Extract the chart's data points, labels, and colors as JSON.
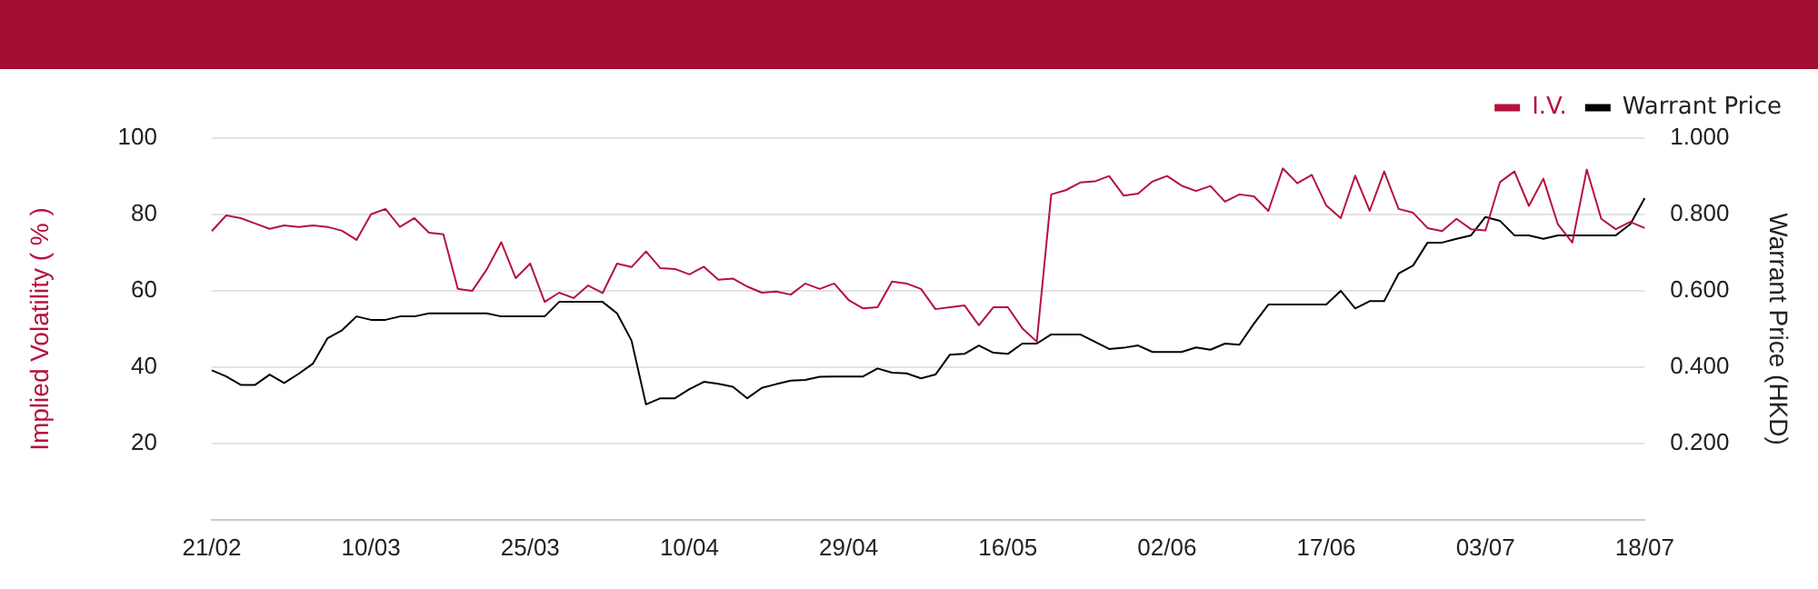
{
  "chart_data": {
    "type": "line",
    "ylabel": "Implied Volatility ( % )",
    "y2label": "Warrant Price (HKD)",
    "categories": [
      "21/02",
      null,
      null,
      null,
      null,
      null,
      null,
      null,
      null,
      null,
      null,
      "10/03",
      null,
      null,
      null,
      null,
      null,
      null,
      null,
      null,
      null,
      null,
      "25/03",
      null,
      null,
      null,
      null,
      null,
      null,
      null,
      null,
      null,
      null,
      "10/04",
      null,
      null,
      null,
      null,
      null,
      null,
      null,
      null,
      null,
      null,
      "29/04",
      null,
      null,
      null,
      null,
      null,
      null,
      null,
      null,
      null,
      null,
      "16/05",
      null,
      null,
      null,
      null,
      null,
      null,
      null,
      null,
      null,
      null,
      "02/06",
      null,
      null,
      null,
      null,
      null,
      null,
      null,
      null,
      null,
      null,
      "17/06",
      null,
      null,
      null,
      null,
      null,
      null,
      null,
      null,
      null,
      null,
      "03/07",
      null,
      null,
      null,
      null,
      null,
      null,
      null,
      null,
      null,
      null,
      "18/07"
    ],
    "series": [
      {
        "name": "I.V.",
        "color": "#b5123e",
        "values": [
          75.6,
          79.7,
          79,
          77.6,
          76.2,
          77.1,
          76.7,
          77.1,
          76.7,
          75.7,
          73.3,
          80,
          81.4,
          76.7,
          79,
          75.2,
          74.8,
          60.5,
          60,
          65.6,
          72.7,
          63.3,
          67.1,
          57.1,
          59.5,
          58.1,
          61.4,
          59.4,
          67.1,
          66.2,
          70.3,
          65.9,
          65.7,
          64.3,
          66.3,
          62.9,
          63.2,
          61.1,
          59.5,
          59.8,
          59,
          61.9,
          60.5,
          61.9,
          57.6,
          55.4,
          55.7,
          62.4,
          61.9,
          60.5,
          55.2,
          55.7,
          56.2,
          51,
          55.7,
          55.7,
          50.2,
          46.7,
          85.2,
          86.3,
          88.3,
          88.6,
          90,
          84.9,
          85.4,
          88.6,
          90,
          87.5,
          86.1,
          87.4,
          83.3,
          85.2,
          84.7,
          80.9,
          92,
          88.1,
          90.3,
          82.3,
          79,
          90.1,
          80.9,
          91.2,
          81.4,
          80.4,
          76.4,
          75.6,
          78.8,
          76.1,
          75.8,
          88.4,
          91.2,
          82.2,
          89.3,
          77.4,
          72.6,
          91.7,
          78.8,
          76.1,
          78,
          76.4
        ]
      },
      {
        "name": "Warrant Price",
        "color": "#000000",
        "axis": "y2",
        "values": [
          0.392,
          0.376,
          0.354,
          0.354,
          0.381,
          0.359,
          0.383,
          0.41,
          0.476,
          0.497,
          0.533,
          0.524,
          0.524,
          0.533,
          0.533,
          0.541,
          0.541,
          0.541,
          0.541,
          0.541,
          0.533,
          0.533,
          0.533,
          0.533,
          0.571,
          0.571,
          0.571,
          0.571,
          0.541,
          0.47,
          0.303,
          0.319,
          0.319,
          0.343,
          0.362,
          0.357,
          0.349,
          0.319,
          0.346,
          0.356,
          0.365,
          0.367,
          0.375,
          0.376,
          0.376,
          0.376,
          0.397,
          0.386,
          0.384,
          0.371,
          0.381,
          0.433,
          0.435,
          0.457,
          0.438,
          0.435,
          0.462,
          0.462,
          0.486,
          0.486,
          0.486,
          0.467,
          0.448,
          0.451,
          0.457,
          0.44,
          0.44,
          0.44,
          0.452,
          0.446,
          0.462,
          0.459,
          0.514,
          0.564,
          0.564,
          0.564,
          0.564,
          0.564,
          0.6,
          0.554,
          0.573,
          0.573,
          0.645,
          0.666,
          0.726,
          0.726,
          0.736,
          0.745,
          0.793,
          0.783,
          0.745,
          0.745,
          0.736,
          0.745,
          0.745,
          0.745,
          0.745,
          0.745,
          0.774,
          0.842
        ]
      }
    ],
    "ylim": [
      0,
      100
    ],
    "yticks": [
      {
        "value": 0,
        "label": null
      },
      20,
      40,
      60,
      80,
      100
    ],
    "y2lim": [
      0,
      1
    ],
    "y2ticks": [
      {
        "value": 0,
        "label": null
      },
      {
        "value": 0.2,
        "label": "0.200"
      },
      {
        "value": 0.4,
        "label": "0.400"
      },
      {
        "value": 0.6,
        "label": "0.600"
      },
      {
        "value": 0.8,
        "label": "0.800"
      },
      {
        "value": 1,
        "label": "1.000"
      }
    ],
    "grid": "y",
    "legend": "top right",
    "marker": "none",
    "line_style": "solid"
  }
}
